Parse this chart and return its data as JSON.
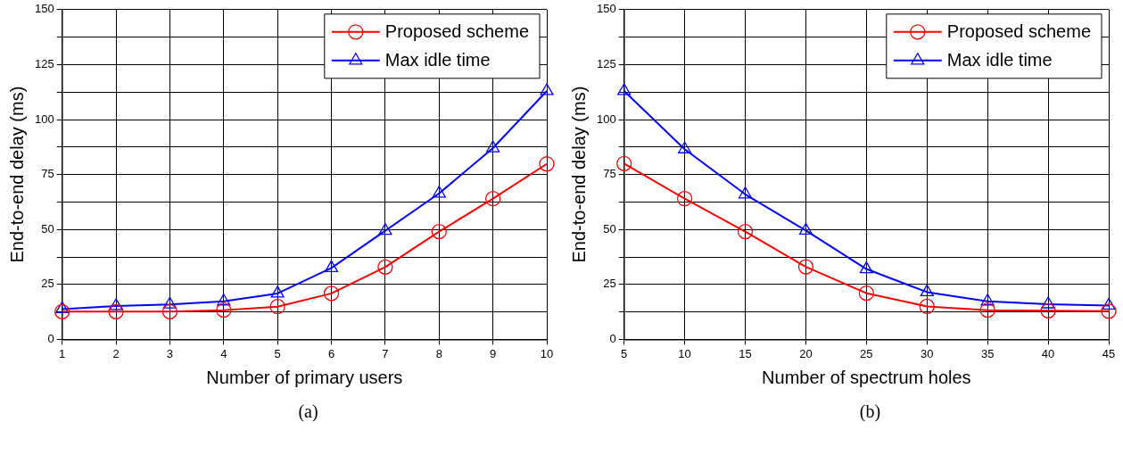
{
  "chart_data": [
    {
      "type": "line",
      "xlabel": "Number of primary users",
      "ylabel": "End-to-end delay (ms)",
      "x": [
        1,
        2,
        3,
        4,
        5,
        6,
        7,
        8,
        9,
        10
      ],
      "xlim": [
        1,
        10
      ],
      "xticks": [
        1,
        2,
        3,
        4,
        5,
        6,
        7,
        8,
        9,
        10
      ],
      "ylim": [
        0,
        150
      ],
      "yticks": [
        0,
        {
          "value": 12.5,
          "label": null
        },
        25,
        {
          "value": 37.5,
          "label": null
        },
        50,
        {
          "value": 62.5,
          "label": null
        },
        75,
        {
          "value": 87.5,
          "label": null
        },
        100,
        {
          "value": 112.5,
          "label": null
        },
        125,
        {
          "value": 137.5,
          "label": null
        },
        150
      ],
      "grid": true,
      "legend": "top right",
      "line_style": "solid",
      "annotations": [
        "(a)"
      ],
      "series": [
        {
          "name": "Proposed scheme",
          "color": "#ff0000",
          "marker": "circle",
          "values": [
            12.6,
            12.6,
            12.6,
            13.3,
            14.9,
            20.9,
            32.9,
            49,
            64,
            79.8
          ]
        },
        {
          "name": "Max idle time",
          "color": "#0000ff",
          "marker": "triangle",
          "values": [
            13.8,
            15.2,
            15.9,
            17.3,
            20.9,
            32.5,
            49.4,
            66.4,
            87,
            113
          ]
        }
      ]
    },
    {
      "type": "line",
      "xlabel": "Number of spectrum holes",
      "ylabel": "End-to-end delay (ms)",
      "x": [
        5,
        10,
        15,
        20,
        25,
        30,
        35,
        40,
        45
      ],
      "xlim": [
        5,
        45
      ],
      "xticks": [
        5,
        10,
        15,
        20,
        25,
        30,
        35,
        40,
        45
      ],
      "ylim": [
        0,
        150
      ],
      "yticks": [
        0,
        {
          "value": 12.5,
          "label": null
        },
        25,
        {
          "value": 37.5,
          "label": null
        },
        50,
        {
          "value": 62.5,
          "label": null
        },
        75,
        {
          "value": 87.5,
          "label": null
        },
        100,
        {
          "value": 112.5,
          "label": null
        },
        125,
        {
          "value": 137.5,
          "label": null
        },
        150
      ],
      "grid": true,
      "legend": "top right",
      "line_style": "solid",
      "annotations": [
        "(b)"
      ],
      "series": [
        {
          "name": "Proposed scheme",
          "color": "#ff0000",
          "marker": "circle",
          "values": [
            80,
            64,
            49,
            33,
            21,
            15,
            13.3,
            13,
            12.8
          ]
        },
        {
          "name": "Max idle time",
          "color": "#0000ff",
          "marker": "triangle",
          "values": [
            113,
            86.5,
            66,
            49.5,
            32,
            21.5,
            17.3,
            16,
            15.4
          ]
        }
      ]
    }
  ]
}
